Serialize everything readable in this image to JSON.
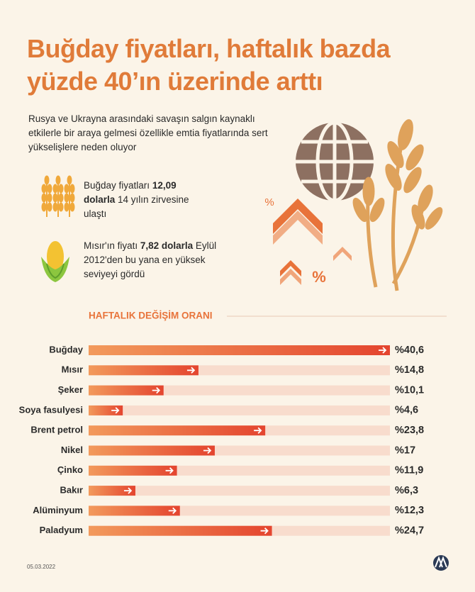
{
  "header": {
    "title_lines": [
      "Buğday fiyatları, haftalık bazda",
      "yüzde 40’ın üzerinde arttı"
    ]
  },
  "intro_lines": [
    "Rusya ve Ukrayna arasındaki savaşın salgın kaynaklı",
    "etkilerle bir araya gelmesi özellikle emtia fiyatlarında sert",
    "yükselişlere neden oluyor"
  ],
  "highlights": [
    {
      "before": "Buğday fiyatları ",
      "bold": "12,09 dolarla",
      "after": " 14 yılın zirvesine ulaştı"
    },
    {
      "before": "Mısır'ın fiyatı ",
      "bold": "7,82 dolarla",
      "after": " Eylül 2012'den bu yana en yüksek seviyeyi gördü"
    }
  ],
  "illustration": {
    "symbols": [
      "%",
      "%"
    ]
  },
  "chart_data": {
    "type": "bar",
    "orientation": "horizontal",
    "title": "HAFTALIK DEĞİŞİM ORANI",
    "categories": [
      "Buğday",
      "Mısır",
      "Şeker",
      "Soya fasulyesi",
      "Brent petrol",
      "Nikel",
      "Çinko",
      "Bakır",
      "Alüminyum",
      "Paladyum"
    ],
    "values": [
      40.6,
      14.8,
      10.1,
      4.6,
      23.8,
      17,
      11.9,
      6.3,
      12.3,
      24.7
    ],
    "value_labels": [
      "%40,6",
      "%14,8",
      "%10,1",
      "%4,6",
      "%23,8",
      "%17",
      "%11,9",
      "%6,3",
      "%12,3",
      "%24,7"
    ],
    "colors": [
      "#f29a5c",
      "#e4452f"
    ],
    "track_color": "#f8dccd"
  },
  "footer": {
    "date": "05.03.2022"
  }
}
